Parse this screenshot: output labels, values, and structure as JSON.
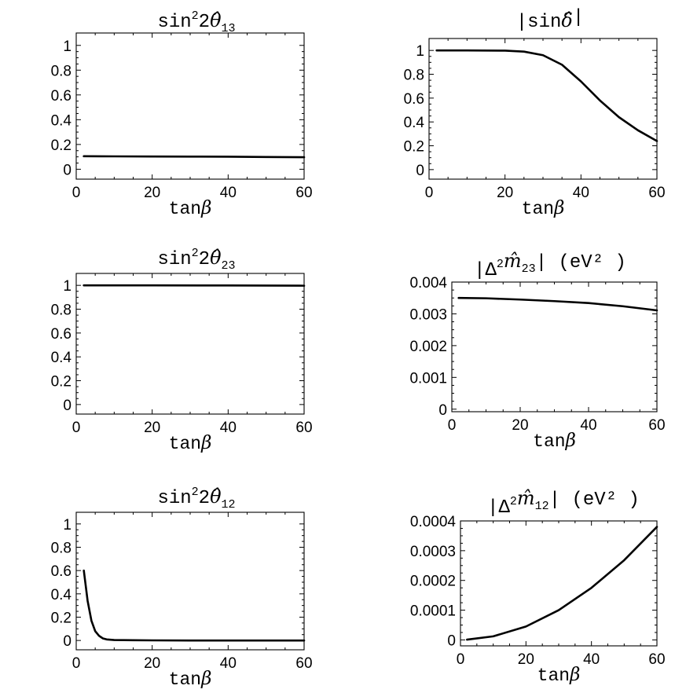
{
  "chart_data": [
    {
      "type": "line",
      "title": {
        "prefix": "sin",
        "sup": "2",
        "mid": "2",
        "symbol": "θ̂",
        "sub": "13",
        "suffix": ""
      },
      "xlabel": {
        "text": "tan",
        "symbol": "β"
      },
      "xlim": [
        0,
        60
      ],
      "ylim": [
        -0.08,
        1.1
      ],
      "xticks": [
        "0",
        "20",
        "40",
        "60"
      ],
      "yticks": [
        "0",
        "0.2",
        "0.4",
        "0.6",
        "0.8",
        "1"
      ],
      "series": [
        {
          "x": [
            2,
            10,
            20,
            30,
            40,
            50,
            60
          ],
          "y": [
            0.105,
            0.104,
            0.103,
            0.102,
            0.101,
            0.099,
            0.097
          ]
        }
      ]
    },
    {
      "type": "line",
      "title": {
        "prefix": "|sin",
        "sup": "",
        "mid": "",
        "symbol": "δ̂",
        "sub": "",
        "suffix": "|"
      },
      "xlabel": {
        "text": "tan",
        "symbol": "β"
      },
      "xlim": [
        0,
        60
      ],
      "ylim": [
        -0.08,
        1.1
      ],
      "xticks": [
        "0",
        "20",
        "40",
        "60"
      ],
      "yticks": [
        "0",
        "0.2",
        "0.4",
        "0.6",
        "0.8",
        "1"
      ],
      "series": [
        {
          "x": [
            2,
            10,
            20,
            25,
            30,
            35,
            40,
            45,
            50,
            55,
            60
          ],
          "y": [
            1.0,
            1.0,
            0.998,
            0.99,
            0.96,
            0.88,
            0.74,
            0.58,
            0.44,
            0.33,
            0.24
          ]
        }
      ]
    },
    {
      "type": "line",
      "title": {
        "prefix": "sin",
        "sup": "2",
        "mid": "2",
        "symbol": "θ̂",
        "sub": "23",
        "suffix": ""
      },
      "xlabel": {
        "text": "tan",
        "symbol": "β"
      },
      "xlim": [
        0,
        60
      ],
      "ylim": [
        -0.08,
        1.1
      ],
      "xticks": [
        "0",
        "20",
        "40",
        "60"
      ],
      "yticks": [
        "0",
        "0.2",
        "0.4",
        "0.6",
        "0.8",
        "1"
      ],
      "series": [
        {
          "x": [
            2,
            20,
            40,
            60
          ],
          "y": [
            1.0,
            1.0,
            0.999,
            0.997
          ]
        }
      ]
    },
    {
      "type": "line",
      "title": {
        "prefix": "|Δ",
        "sup": "2",
        "mid": "",
        "symbol": "m̂",
        "sub": "23",
        "suffix": "|  (eV² )"
      },
      "xlabel": {
        "text": "tan",
        "symbol": "β"
      },
      "xlim": [
        0,
        60
      ],
      "ylim": [
        -8e-05,
        0.004
      ],
      "xticks": [
        "0",
        "20",
        "40",
        "60"
      ],
      "yticks": [
        "0",
        "0.001",
        "0.002",
        "0.003",
        "0.004"
      ],
      "series": [
        {
          "x": [
            2,
            10,
            20,
            30,
            40,
            50,
            60
          ],
          "y": [
            0.0035,
            0.00349,
            0.00345,
            0.0034,
            0.00334,
            0.00324,
            0.00311
          ]
        }
      ]
    },
    {
      "type": "line",
      "title": {
        "prefix": "sin",
        "sup": "2",
        "mid": "2",
        "symbol": "θ̂",
        "sub": "12",
        "suffix": ""
      },
      "xlabel": {
        "text": "tan",
        "symbol": "β"
      },
      "xlim": [
        0,
        60
      ],
      "ylim": [
        -0.08,
        1.1
      ],
      "xticks": [
        "0",
        "20",
        "40",
        "60"
      ],
      "yticks": [
        "0",
        "0.2",
        "0.4",
        "0.6",
        "0.8",
        "1"
      ],
      "series": [
        {
          "x": [
            2,
            3,
            4,
            5,
            6,
            7,
            8,
            10,
            15,
            20,
            30,
            40,
            50,
            60
          ],
          "y": [
            0.6,
            0.34,
            0.17,
            0.08,
            0.04,
            0.018,
            0.009,
            0.004,
            0.002,
            0.001,
            0.0,
            0.0,
            0.0,
            0.0
          ]
        }
      ]
    },
    {
      "type": "line",
      "title": {
        "prefix": "|Δ",
        "sup": "2",
        "mid": "",
        "symbol": "m̂",
        "sub": "12",
        "suffix": "|  (eV² )"
      },
      "xlabel": {
        "text": "tan",
        "symbol": "β"
      },
      "xlim": [
        0,
        60
      ],
      "ylim": [
        -2e-05,
        0.0004
      ],
      "xticks": [
        "0",
        "20",
        "40",
        "60"
      ],
      "yticks": [
        "0",
        "0.0001",
        "0.0002",
        "0.0003",
        "0.0004"
      ],
      "series": [
        {
          "x": [
            2,
            10,
            20,
            30,
            40,
            50,
            60
          ],
          "y": [
            1e-06,
            1.2e-05,
            4.5e-05,
            0.0001,
            0.000175,
            0.000268,
            0.00038
          ]
        }
      ]
    }
  ]
}
